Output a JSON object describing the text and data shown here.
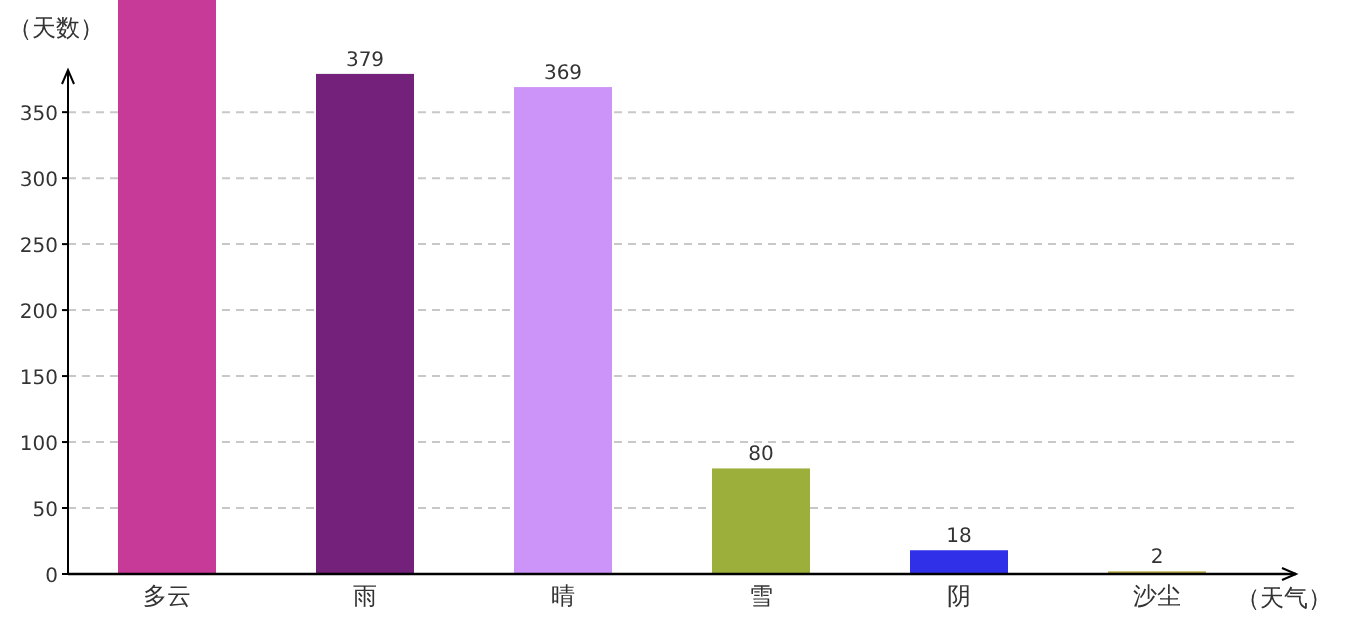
{
  "chart_data": {
    "type": "bar",
    "xlabel": "（天气）",
    "ylabel": "（天数）",
    "categories": [
      "多云",
      "雨",
      "晴",
      "雪",
      "阴",
      "沙尘"
    ],
    "values": [
      435,
      379,
      369,
      80,
      18,
      2
    ],
    "value_labels": [
      null,
      "379",
      "369",
      "80",
      "18",
      "2"
    ],
    "colors": [
      "#c73a98",
      "#74217b",
      "#cc93f8",
      "#9daf3b",
      "#3030e8",
      "#b5a940"
    ],
    "ylim": [
      0,
      435
    ],
    "yticks": [
      0,
      50,
      100,
      150,
      200,
      250,
      300,
      350
    ],
    "grid": "y"
  }
}
